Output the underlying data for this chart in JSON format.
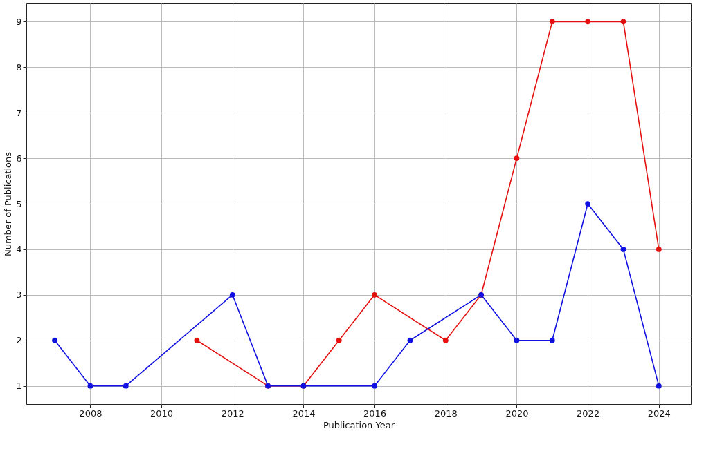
{
  "chart_data": {
    "type": "line",
    "xlabel": "Publication Year",
    "ylabel": "Number of Publications",
    "series": [
      {
        "color": "#e41010",
        "x": [
          2011,
          2013,
          2014,
          2015,
          2016,
          2018,
          2019,
          2020,
          2021,
          2022,
          2023,
          2024
        ],
        "values": [
          2,
          1,
          1,
          2,
          3,
          2,
          3,
          6,
          9,
          9,
          9,
          4
        ]
      },
      {
        "color": "#1010e0",
        "x": [
          2007,
          2008,
          2009,
          2012,
          2013,
          2014,
          2016,
          2017,
          2019,
          2020,
          2021,
          2022,
          2023,
          2024
        ],
        "values": [
          2,
          1,
          1,
          3,
          1,
          1,
          1,
          2,
          3,
          2,
          2,
          5,
          4,
          1
        ]
      }
    ],
    "xlim": [
      2006.2,
      2024.9
    ],
    "xticks": [
      2008,
      2010,
      2012,
      2014,
      2016,
      2018,
      2020,
      2022,
      2024
    ],
    "ylim": [
      0.6,
      9.4
    ],
    "yticks": [
      1,
      2,
      3,
      4,
      5,
      6,
      7,
      8,
      9
    ],
    "grid": true,
    "marker": "circle",
    "line_style": "solid"
  }
}
